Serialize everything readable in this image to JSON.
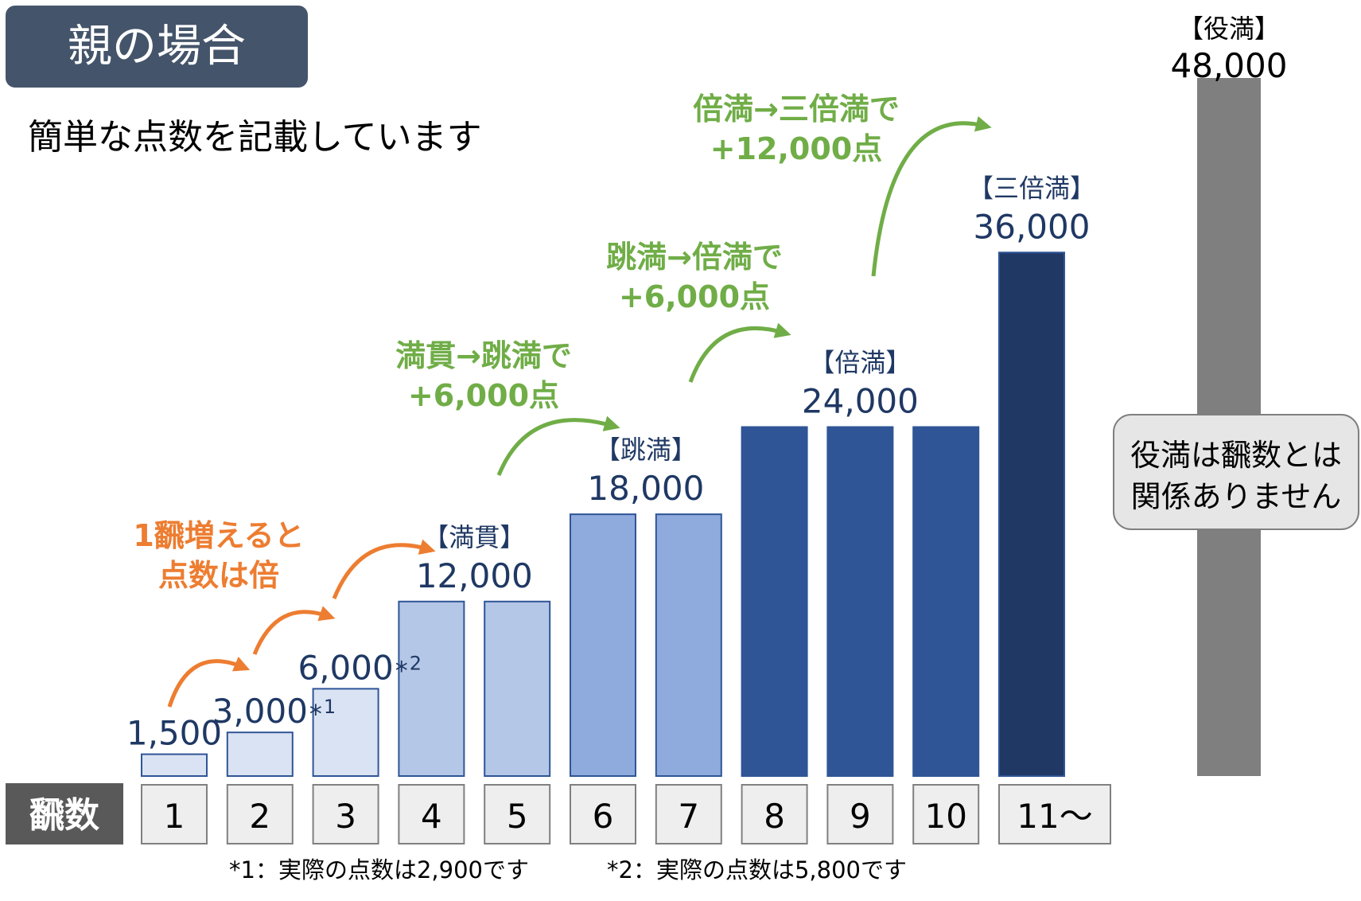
{
  "header": {
    "title": "親の場合",
    "subtitle": "簡単な点数を記載しています"
  },
  "chart_data": {
    "type": "bar",
    "row_label": "飜数",
    "categories": [
      "1",
      "2",
      "3",
      "4",
      "5",
      "6",
      "7",
      "8",
      "9",
      "10",
      "11〜"
    ],
    "values": [
      1500,
      3000,
      6000,
      12000,
      12000,
      18000,
      18000,
      24000,
      24000,
      24000,
      36000
    ],
    "bar_colors": [
      "#dae3f3",
      "#dae3f3",
      "#dae3f3",
      "#b4c7e7",
      "#b4c7e7",
      "#8faadc",
      "#8faadc",
      "#2f5597",
      "#2f5597",
      "#2f5597",
      "#203864"
    ],
    "bar_border": "#2f5597",
    "value_labels": [
      {
        "bar": 0,
        "value": "1,500",
        "suffix": ""
      },
      {
        "bar": 1,
        "value": "3,000",
        "suffix": "*1"
      },
      {
        "bar": 2,
        "value": "6,000",
        "suffix": "*2"
      }
    ],
    "group_labels": [
      {
        "from": 3,
        "to": 4,
        "name": "【満貫】",
        "value": "12,000"
      },
      {
        "from": 5,
        "to": 6,
        "name": "【跳満】",
        "value": "18,000"
      },
      {
        "from": 7,
        "to": 9,
        "name": "【倍満】",
        "value": "24,000"
      },
      {
        "from": 10,
        "to": 10,
        "name": "【三倍満】",
        "value": "36,000"
      }
    ],
    "extra_bar": {
      "name": "【役満】",
      "value": 48000,
      "label": "48,000",
      "color": "#7f7f7f",
      "note": [
        "役満は飜数とは",
        "関係ありません"
      ]
    },
    "annotations": [
      {
        "lines": [
          "1飜増えると",
          "点数は倍"
        ],
        "color": "#ed7d31"
      },
      {
        "lines": [
          "満貫→跳満で",
          "+6,000点"
        ],
        "color": "#70ad47"
      },
      {
        "lines": [
          "跳満→倍満で",
          "+6,000点"
        ],
        "color": "#70ad47"
      },
      {
        "lines": [
          "倍満→三倍満で",
          "+12,000点"
        ],
        "color": "#70ad47"
      }
    ],
    "footnotes": [
      "*1：実際の点数は2,900です",
      "*2：実際の点数は5,800です"
    ],
    "ylim": [
      0,
      48000
    ],
    "label_color": "#1f3864"
  }
}
